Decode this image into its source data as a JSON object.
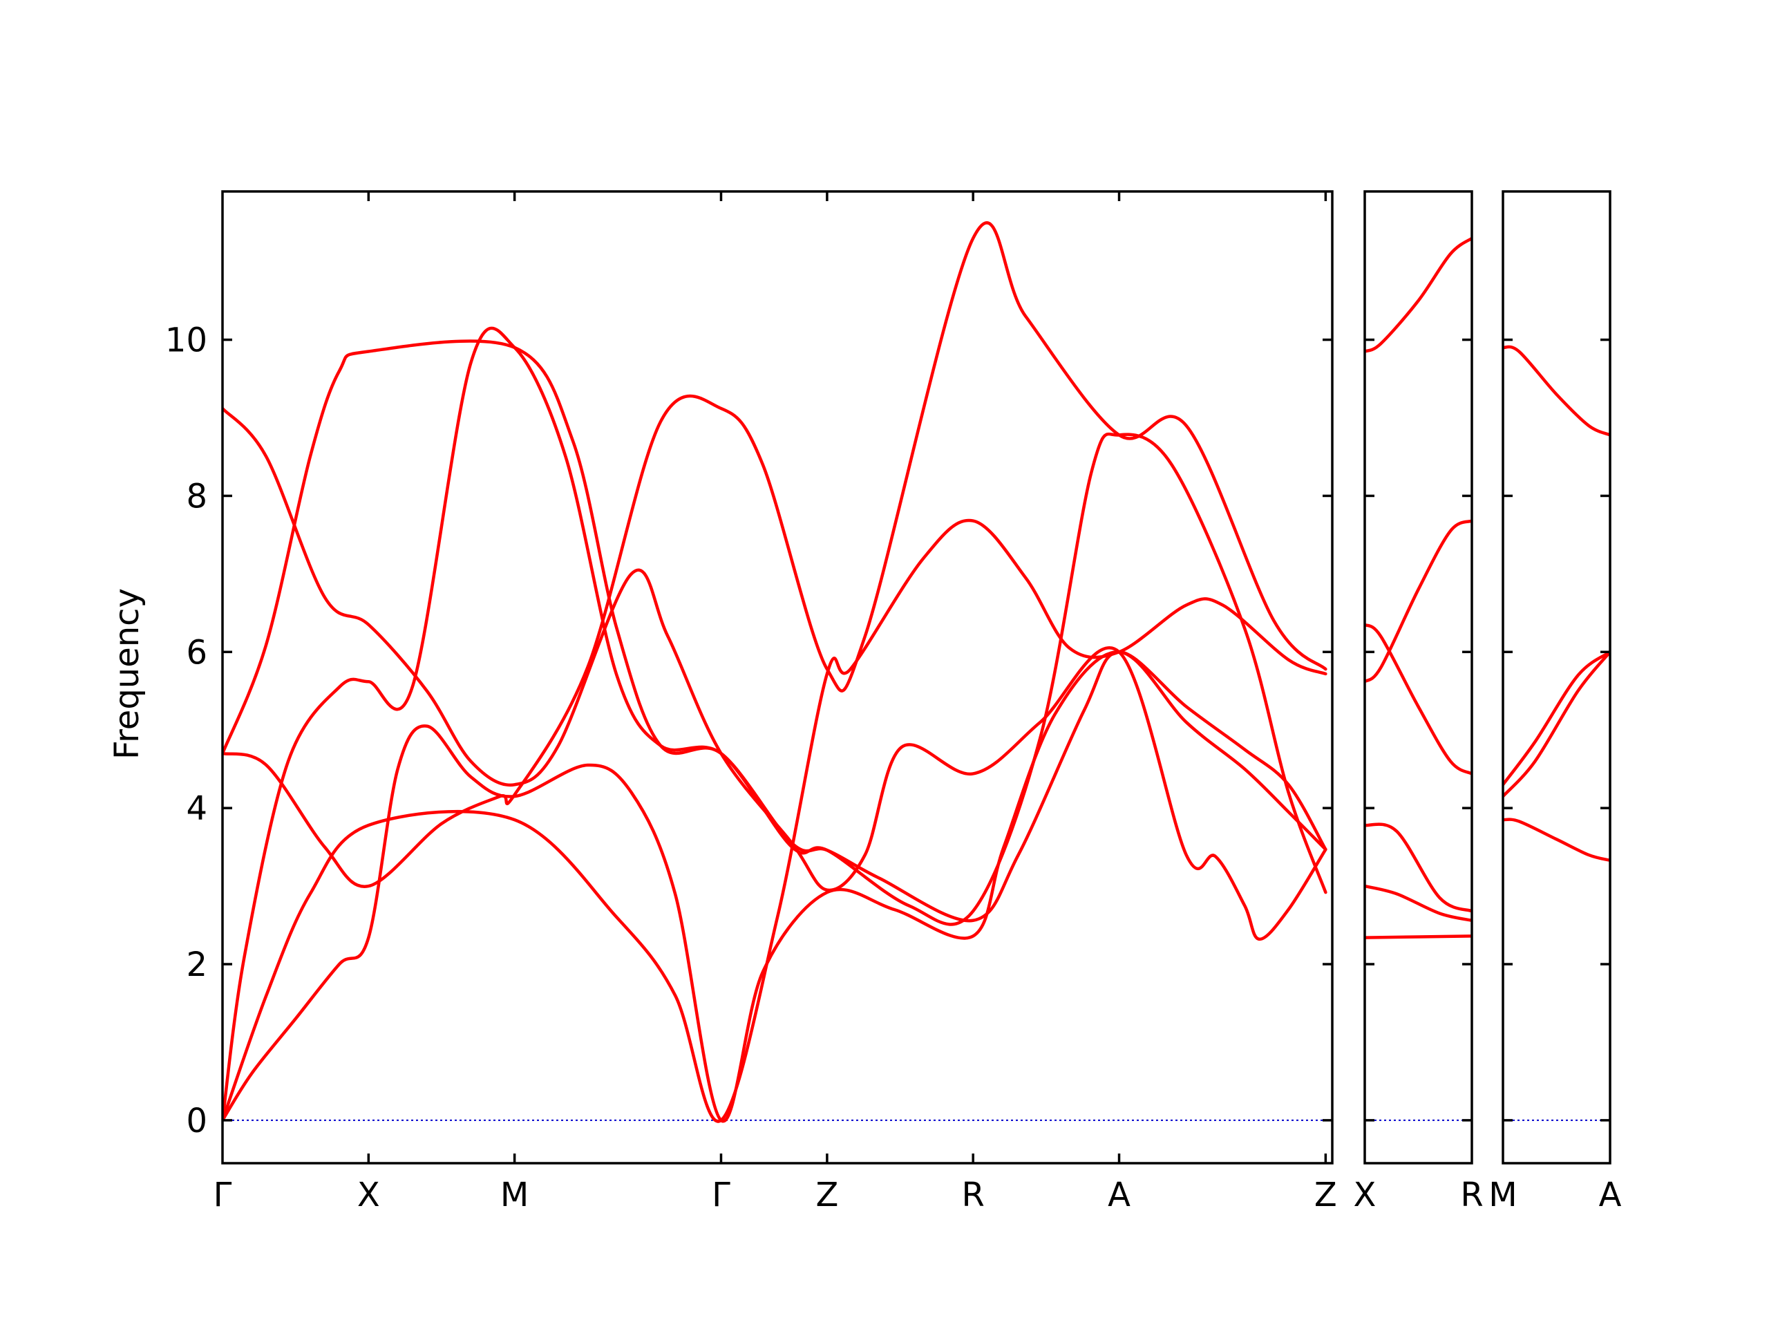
{
  "chart_data": {
    "type": "line",
    "ylabel": "Frequency",
    "ylim": [
      -0.55,
      11.9
    ],
    "yticks": [
      0,
      2,
      4,
      6,
      8,
      10
    ],
    "grid": false,
    "colors": {
      "band": "#ff0000",
      "zero_line": "#0000cc"
    },
    "segments": [
      {
        "name": "G-X-M-G-Z-R-A-Z",
        "xlim": [
          0,
          7.6
        ],
        "ticks": [
          {
            "label": "Γ",
            "x": 0
          },
          {
            "label": "X",
            "x": 1
          },
          {
            "label": "M",
            "x": 2
          },
          {
            "label": "Γ",
            "x": 3.4142
          },
          {
            "label": "Z",
            "x": 4.1402
          },
          {
            "label": "R",
            "x": 5.1402
          },
          {
            "label": "A",
            "x": 6.1402
          },
          {
            "label": "Z",
            "x": 7.5544
          }
        ],
        "bands": [
          [
            [
              0,
              0
            ],
            [
              0.2,
              0.6
            ],
            [
              0.5,
              1.3
            ],
            [
              0.8,
              2
            ],
            [
              1,
              2.34
            ],
            [
              1.2,
              4.5
            ],
            [
              1.4,
              5.05
            ],
            [
              1.7,
              4.4
            ],
            [
              2,
              4.15
            ],
            [
              2.5,
              4.55
            ],
            [
              2.8,
              4.2
            ],
            [
              3.1,
              2.9
            ],
            [
              3.4142,
              0
            ],
            [
              3.7,
              1.9
            ],
            [
              4.1402,
              2.92
            ],
            [
              4.6,
              2.7
            ],
            [
              5.1402,
              2.36
            ],
            [
              5.35,
              3.5
            ],
            [
              5.7,
              5.2
            ],
            [
              6.1402,
              6
            ],
            [
              6.6,
              5.1
            ],
            [
              7.0,
              4.5
            ],
            [
              7.3,
              3.95
            ],
            [
              7.5544,
              3.47
            ]
          ],
          [
            [
              0,
              0
            ],
            [
              0.3,
              1.6
            ],
            [
              0.6,
              2.9
            ],
            [
              1,
              3.78
            ],
            [
              2,
              3.85
            ],
            [
              2.7,
              2.6
            ],
            [
              3.1,
              1.6
            ],
            [
              3.4142,
              0
            ],
            [
              3.8,
              2.6
            ],
            [
              4.1402,
              5.72
            ],
            [
              4.3,
              5.78
            ],
            [
              4.8,
              7.2
            ],
            [
              5.1402,
              7.68
            ],
            [
              5.5,
              6.95
            ],
            [
              5.8,
              6.05
            ],
            [
              6.1402,
              6
            ],
            [
              6.6,
              6.6
            ],
            [
              6.85,
              6.6
            ],
            [
              7.3,
              5.9
            ],
            [
              7.5544,
              5.72
            ]
          ],
          [
            [
              0,
              0
            ],
            [
              0.15,
              2.1
            ],
            [
              0.45,
              4.6
            ],
            [
              0.8,
              5.55
            ],
            [
              1,
              5.62
            ],
            [
              1.3,
              5.55
            ],
            [
              1.7,
              9.7
            ],
            [
              2,
              9.9
            ],
            [
              2.35,
              8.5
            ],
            [
              2.7,
              5.7
            ],
            [
              3,
              4.8
            ],
            [
              3.4142,
              4.7
            ],
            [
              3.9,
              3.55
            ],
            [
              4.1402,
              3.46
            ],
            [
              4.5,
              3.1
            ],
            [
              5.1402,
              2.56
            ],
            [
              5.45,
              3.4
            ],
            [
              5.9,
              5.25
            ],
            [
              6.1402,
              6
            ],
            [
              6.6,
              5.3
            ],
            [
              7.0,
              4.75
            ],
            [
              7.3,
              4.3
            ],
            [
              7.5544,
              3.47
            ]
          ],
          [
            [
              0,
              4.7
            ],
            [
              0.3,
              4.55
            ],
            [
              0.7,
              3.5
            ],
            [
              1,
              3
            ],
            [
              1.5,
              3.8
            ],
            [
              1.9,
              4.15
            ],
            [
              2,
              4.17
            ],
            [
              2.5,
              5.8
            ],
            [
              3.0,
              8.95
            ],
            [
              3.4142,
              9.12
            ],
            [
              3.7,
              8.4
            ],
            [
              4.1402,
              5.78
            ],
            [
              4.4,
              6.2
            ],
            [
              5.1402,
              11.3
            ],
            [
              5.5,
              10.3
            ],
            [
              6.1402,
              8.78
            ],
            [
              6.6,
              8.9
            ],
            [
              7.2,
              6.4
            ],
            [
              7.5544,
              5.78
            ]
          ],
          [
            [
              0,
              4.7
            ],
            [
              0.3,
              6.1
            ],
            [
              0.6,
              8.5
            ],
            [
              0.8,
              9.6
            ],
            [
              1,
              9.85
            ],
            [
              2,
              9.9
            ],
            [
              2.4,
              8.7
            ],
            [
              2.7,
              6.3
            ],
            [
              3,
              4.8
            ],
            [
              3.4142,
              4.7
            ],
            [
              3.9,
              3.5
            ],
            [
              4.1402,
              3.46
            ],
            [
              4.7,
              2.75
            ],
            [
              5.1402,
              2.68
            ],
            [
              5.6,
              4.9
            ],
            [
              5.95,
              8.3
            ],
            [
              6.1402,
              8.78
            ],
            [
              6.5,
              8.4
            ],
            [
              7.0,
              6.3
            ],
            [
              7.3,
              4.2
            ],
            [
              7.5544,
              2.92
            ]
          ],
          [
            [
              0,
              9.12
            ],
            [
              0.3,
              8.5
            ],
            [
              0.7,
              6.7
            ],
            [
              1,
              6.35
            ],
            [
              1.4,
              5.5
            ],
            [
              1.7,
              4.6
            ],
            [
              2,
              4.3
            ],
            [
              2.3,
              4.8
            ],
            [
              2.8,
              7.0
            ],
            [
              3.05,
              6.2
            ],
            [
              3.4142,
              4.7
            ],
            [
              3.9,
              3.55
            ],
            [
              4.1402,
              2.95
            ],
            [
              4.4,
              3.4
            ],
            [
              4.65,
              4.78
            ],
            [
              5.1402,
              4.44
            ],
            [
              5.6,
              5.1
            ],
            [
              6.1402,
              6
            ],
            [
              6.6,
              3.4
            ],
            [
              6.8,
              3.38
            ],
            [
              7.0,
              2.75
            ],
            [
              7.1,
              2.32
            ],
            [
              7.3,
              2.7
            ],
            [
              7.5544,
              3.47
            ]
          ]
        ]
      },
      {
        "name": "X-R",
        "xlim": [
          0,
          1
        ],
        "ticks": [
          {
            "label": "X",
            "x": 0
          },
          {
            "label": "R",
            "x": 1
          }
        ],
        "bands": [
          [
            [
              0,
              2.34
            ],
            [
              1,
              2.36
            ]
          ],
          [
            [
              0,
              3
            ],
            [
              0.3,
              2.9
            ],
            [
              0.7,
              2.65
            ],
            [
              1,
              2.56
            ]
          ],
          [
            [
              0,
              3.78
            ],
            [
              0.3,
              3.7
            ],
            [
              0.7,
              2.85
            ],
            [
              1,
              2.68
            ]
          ],
          [
            [
              0,
              5.62
            ],
            [
              0.15,
              5.8
            ],
            [
              0.5,
              6.8
            ],
            [
              0.8,
              7.55
            ],
            [
              1,
              7.68
            ]
          ],
          [
            [
              0,
              6.35
            ],
            [
              0.15,
              6.2
            ],
            [
              0.5,
              5.3
            ],
            [
              0.8,
              4.6
            ],
            [
              1,
              4.44
            ]
          ],
          [
            [
              0,
              9.85
            ],
            [
              0.15,
              9.95
            ],
            [
              0.5,
              10.5
            ],
            [
              0.8,
              11.1
            ],
            [
              1,
              11.3
            ]
          ]
        ]
      },
      {
        "name": "M-A",
        "xlim": [
          0,
          1
        ],
        "ticks": [
          {
            "label": "M",
            "x": 0
          },
          {
            "label": "A",
            "x": 1
          }
        ],
        "bands": [
          [
            [
              0,
              3.85
            ],
            [
              0.15,
              3.83
            ],
            [
              0.5,
              3.6
            ],
            [
              0.8,
              3.4
            ],
            [
              1,
              3.33
            ]
          ],
          [
            [
              0,
              4.15
            ],
            [
              0.3,
              4.6
            ],
            [
              0.7,
              5.5
            ],
            [
              1,
              6
            ]
          ],
          [
            [
              0,
              4.3
            ],
            [
              0.3,
              4.85
            ],
            [
              0.7,
              5.7
            ],
            [
              1,
              6
            ]
          ],
          [
            [
              0,
              9.9
            ],
            [
              0.15,
              9.85
            ],
            [
              0.5,
              9.3
            ],
            [
              0.8,
              8.9
            ],
            [
              1,
              8.78
            ]
          ]
        ]
      }
    ]
  }
}
